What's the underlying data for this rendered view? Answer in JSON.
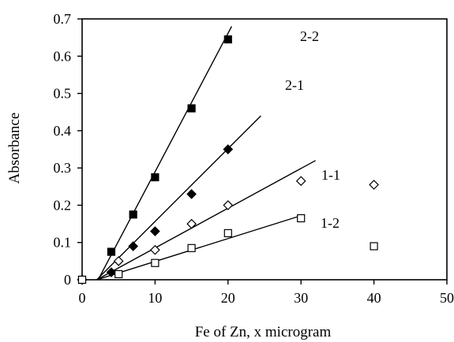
{
  "chart_data": {
    "type": "scatter",
    "title": "",
    "xlabel": "Fe of Zn, x microgram",
    "ylabel": "Absorbance",
    "xlim": [
      0,
      50
    ],
    "ylim": [
      0,
      0.7
    ],
    "x_ticks": [
      0,
      10,
      20,
      30,
      40,
      50
    ],
    "x_tick_labels": [
      "0",
      "10",
      "20",
      "30",
      "40",
      "50"
    ],
    "y_ticks": [
      0,
      0.1,
      0.2,
      0.3,
      0.4,
      0.5,
      0.6,
      0.7
    ],
    "y_tick_labels": [
      "0",
      "0.1",
      "0.2",
      "0.3",
      "0.4",
      "0.5",
      "0.6",
      "0.7"
    ],
    "grid": false,
    "legend": "none",
    "series": [
      {
        "name": "2-2",
        "marker": "filled-square",
        "x": [
          0,
          4,
          7,
          10,
          15,
          20
        ],
        "y": [
          0,
          0.075,
          0.175,
          0.275,
          0.46,
          0.645
        ],
        "fit_line": {
          "x_start": 2.2,
          "y_start": 0,
          "x_end": 20.5,
          "y_end": 0.68
        }
      },
      {
        "name": "2-1",
        "marker": "filled-diamond",
        "x": [
          0,
          4,
          7,
          10,
          15,
          20
        ],
        "y": [
          0,
          0.02,
          0.09,
          0.13,
          0.23,
          0.35
        ],
        "fit_line": {
          "x_start": 2.0,
          "y_start": 0,
          "x_end": 24.5,
          "y_end": 0.44
        }
      },
      {
        "name": "1-1",
        "marker": "open-diamond",
        "x": [
          0,
          5,
          10,
          15,
          20,
          30,
          40
        ],
        "y": [
          0,
          0.05,
          0.08,
          0.15,
          0.2,
          0.265,
          0.255
        ],
        "fit_line": {
          "x_start": 2.0,
          "y_start": 0,
          "x_end": 32,
          "y_end": 0.32
        }
      },
      {
        "name": "1-2",
        "marker": "open-square",
        "x": [
          0,
          5,
          10,
          15,
          20,
          30,
          40
        ],
        "y": [
          0,
          0.015,
          0.045,
          0.085,
          0.125,
          0.165,
          0.09
        ],
        "fit_line": {
          "x_start": 2.0,
          "y_start": 0,
          "x_end": 30.5,
          "y_end": 0.175
        }
      }
    ]
  }
}
